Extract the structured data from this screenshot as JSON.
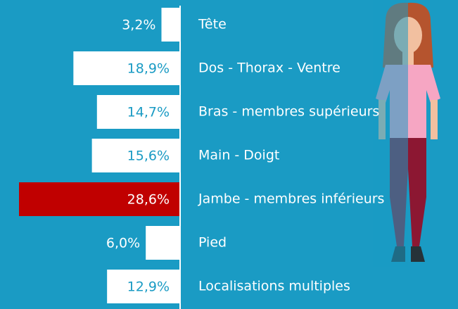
{
  "chart_data": {
    "type": "bar",
    "orientation": "horizontal",
    "categories": [
      "Tête",
      "Dos - Thorax - Ventre",
      "Bras - membres supérieurs",
      "Main - Doigt",
      "Jambe - membres inférieurs",
      "Pied",
      "Localisations multiples"
    ],
    "values": [
      3.2,
      18.9,
      14.7,
      15.6,
      28.6,
      6,
      12.9
    ],
    "value_labels": [
      "3,2%",
      "18,9%",
      "14,7%",
      "15,6%",
      "28,6%",
      "6,0%",
      "12,9%"
    ],
    "colors": [
      "#ffffff",
      "#ffffff",
      "#ffffff",
      "#ffffff",
      "#c00000",
      "#ffffff",
      "#ffffff"
    ]
  }
}
